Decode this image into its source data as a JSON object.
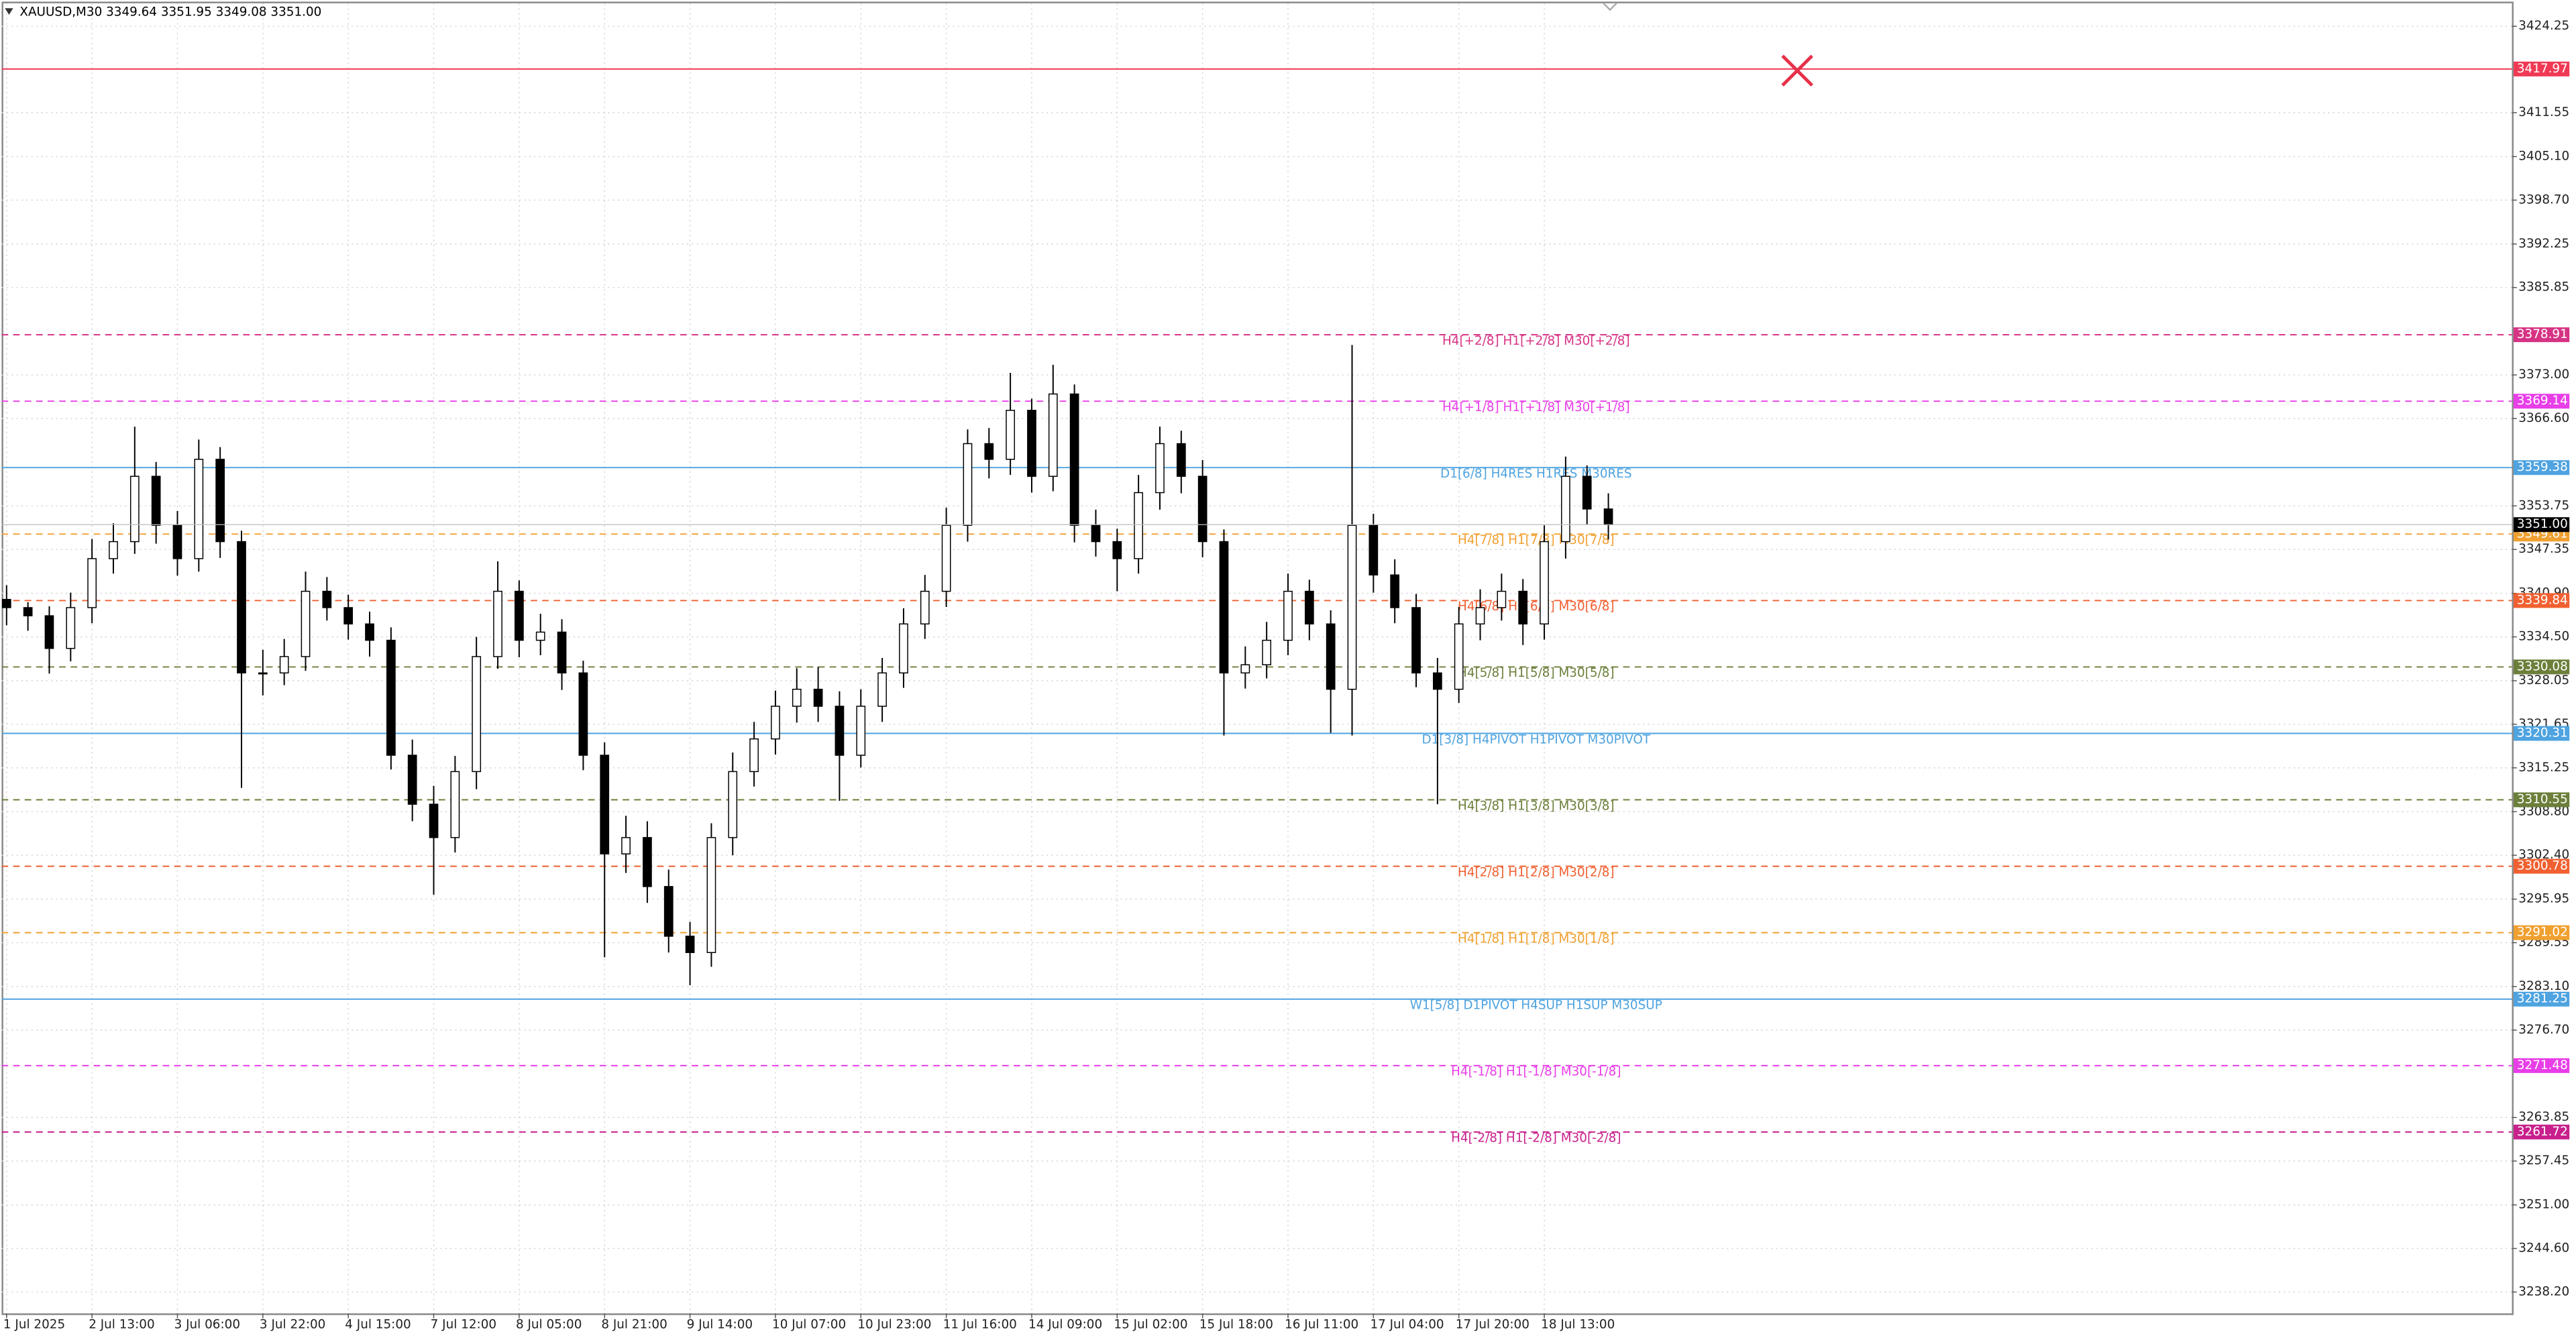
{
  "chart_data": {
    "type": "candlestick",
    "title": "XAUUSD,M30  3349.64 3351.95 3349.08 3351.00",
    "categories": [
      "1 Jul 2025",
      null,
      null,
      null,
      "2 Jul 13:00",
      null,
      null,
      null,
      "3 Jul 06:00",
      null,
      null,
      null,
      "3 Jul 22:00",
      null,
      null,
      null,
      "4 Jul 15:00",
      null,
      null,
      null,
      "7 Jul 12:00",
      null,
      null,
      null,
      "8 Jul 05:00",
      null,
      null,
      null,
      "8 Jul 21:00",
      null,
      null,
      null,
      "9 Jul 14:00",
      null,
      null,
      null,
      "10 Jul 07:00",
      null,
      null,
      null,
      "10 Jul 23:00",
      null,
      null,
      null,
      "11 Jul 16:00",
      null,
      null,
      null,
      "14 Jul 09:00",
      null,
      null,
      null,
      "15 Jul 02:00",
      null,
      null,
      null,
      "15 Jul 18:00",
      null,
      null,
      null,
      "16 Jul 11:00",
      null,
      null,
      null,
      "17 Jul 04:00",
      null,
      null,
      null,
      "17 Jul 20:00",
      null,
      null,
      null,
      "18 Jul 13:00",
      null,
      null,
      null
    ],
    "open": [
      3340.0,
      3338.8,
      3337.6,
      3332.8,
      3338.8,
      3346.0,
      3348.5,
      3358.1,
      3350.9,
      3346.0,
      3360.6,
      3348.5,
      3329.2,
      3329.2,
      3331.6,
      3341.2,
      3338.8,
      3336.4,
      3334.0,
      3317.1,
      3309.9,
      3305.0,
      3314.7,
      3331.6,
      3341.2,
      3334.0,
      3335.2,
      3329.2,
      3317.1,
      3302.6,
      3305.0,
      3297.8,
      3290.5,
      3288.1,
      3305.0,
      3314.7,
      3319.5,
      3324.3,
      3326.8,
      3324.3,
      3317.1,
      3324.3,
      3329.2,
      3336.4,
      3341.2,
      3350.9,
      3362.9,
      3360.6,
      3367.8,
      3358.1,
      3370.2,
      3350.9,
      3348.5,
      3346.0,
      3355.7,
      3362.9,
      3358.1,
      3348.5,
      3329.2,
      3330.4,
      3334.0,
      3341.2,
      3336.4,
      3326.8,
      3350.9,
      3343.6,
      3338.8,
      3329.2,
      3326.8,
      3336.4,
      3338.8,
      3341.2,
      3336.4,
      3348.5,
      3358.1,
      3353.3
    ],
    "high": [
      3342.1,
      3339.6,
      3339.0,
      3341.0,
      3348.9,
      3351.2,
      3365.4,
      3360.2,
      3353.0,
      3363.5,
      3362.4,
      3350.1,
      3332.6,
      3334.2,
      3344.1,
      3343.3,
      3340.7,
      3338.2,
      3335.9,
      3319.4,
      3312.6,
      3317.0,
      3334.5,
      3345.6,
      3342.8,
      3337.9,
      3337.1,
      3331.0,
      3319.0,
      3308.2,
      3307.4,
      3300.3,
      3292.6,
      3307.1,
      3317.5,
      3322.0,
      3326.6,
      3329.9,
      3330.1,
      3326.5,
      3326.8,
      3331.4,
      3338.7,
      3343.6,
      3353.5,
      3365.0,
      3365.2,
      3373.3,
      3369.5,
      3374.5,
      3371.6,
      3353.2,
      3350.4,
      3358.3,
      3365.4,
      3364.8,
      3360.5,
      3350.3,
      3333.1,
      3336.7,
      3343.8,
      3342.9,
      3338.4,
      3377.4,
      3352.6,
      3345.9,
      3340.8,
      3331.4,
      3338.9,
      3341.5,
      3343.8,
      3343.0,
      3350.9,
      3361.0,
      3359.7,
      3355.6
    ],
    "low": [
      3336.2,
      3335.4,
      3329.1,
      3330.9,
      3336.5,
      3343.8,
      3346.7,
      3348.2,
      3343.5,
      3344.1,
      3346.1,
      3312.3,
      3325.9,
      3327.4,
      3329.5,
      3336.9,
      3334.1,
      3331.6,
      3315.0,
      3307.4,
      3296.6,
      3302.8,
      3312.1,
      3329.8,
      3331.5,
      3331.8,
      3326.7,
      3314.9,
      3287.4,
      3299.8,
      3295.4,
      3288.1,
      3283.3,
      3286.0,
      3302.4,
      3312.5,
      3317.2,
      3321.9,
      3322.0,
      3310.4,
      3315.3,
      3322.0,
      3327.0,
      3334.2,
      3338.9,
      3348.5,
      3357.8,
      3358.3,
      3355.7,
      3355.9,
      3348.4,
      3346.3,
      3341.2,
      3343.8,
      3353.2,
      3355.6,
      3346.2,
      3320.0,
      3326.9,
      3328.4,
      3331.8,
      3334.0,
      3320.4,
      3320.0,
      3341.0,
      3336.5,
      3327.1,
      3309.9,
      3324.8,
      3334.0,
      3336.9,
      3333.3,
      3334.1,
      3346.0,
      3351.0,
      3348.8
    ],
    "close": [
      3338.8,
      3337.6,
      3332.8,
      3338.8,
      3346.0,
      3348.5,
      3358.1,
      3350.9,
      3346.0,
      3360.6,
      3348.5,
      3329.2,
      3329.2,
      3331.6,
      3341.2,
      3338.8,
      3336.4,
      3334.0,
      3317.1,
      3309.9,
      3305.0,
      3314.7,
      3331.6,
      3341.2,
      3334.0,
      3335.2,
      3329.2,
      3317.1,
      3302.6,
      3305.0,
      3297.8,
      3290.5,
      3288.1,
      3305.0,
      3314.7,
      3319.5,
      3324.3,
      3326.8,
      3324.3,
      3317.1,
      3324.3,
      3329.2,
      3336.4,
      3341.2,
      3350.9,
      3362.9,
      3360.6,
      3367.8,
      3358.1,
      3370.2,
      3350.9,
      3348.5,
      3346.0,
      3355.7,
      3362.9,
      3358.1,
      3348.5,
      3329.2,
      3330.4,
      3334.0,
      3341.2,
      3336.4,
      3326.8,
      3350.9,
      3343.6,
      3338.8,
      3329.2,
      3326.8,
      3336.4,
      3338.8,
      3341.2,
      3336.4,
      3348.5,
      3358.1,
      3353.3,
      3351.0
    ],
    "ylim": [
      3235.06,
      3427.63
    ],
    "yticks": [
      3424.25,
      3411.55,
      {
        "value": 3405.1,
        "label": "3405.10"
      },
      {
        "value": 3398.7,
        "label": "3398.70"
      },
      3392.25,
      3385.85,
      {
        "value": 3373,
        "label": "3373.00"
      },
      {
        "value": 3366.6,
        "label": "3366.60"
      },
      3353.75,
      3347.35,
      {
        "value": 3340.9,
        "label": "3340.90"
      },
      {
        "value": 3334.5,
        "label": "3334.50"
      },
      3328.05,
      3321.65,
      3315.25,
      {
        "value": 3308.8,
        "label": "3308.80"
      },
      {
        "value": 3302.4,
        "label": "3302.40"
      },
      3295.95,
      3289.55,
      {
        "value": 3283.1,
        "label": "3283.10"
      },
      {
        "value": 3276.7,
        "label": "3276.70"
      },
      3263.85,
      3257.45,
      {
        "value": 3251,
        "label": "3251.00"
      },
      {
        "value": 3244.6,
        "label": "3244.60"
      },
      {
        "value": 3238.2,
        "label": "3238.20"
      }
    ],
    "grid": true,
    "up_color": "#ffffff",
    "down_color": "#000000",
    "levels": [
      {
        "value": 3417.97,
        "color": "#f03a55",
        "style": "solid"
      },
      {
        "name": "H4[+2/8] H1[+2/8] M30[+2/8]",
        "value": 3378.91,
        "color": "#d63384",
        "style": "dashed"
      },
      {
        "name": "H4[+1/8] H1[+1/8] M30[+1/8]",
        "value": 3369.14,
        "color": "#e83ee8",
        "style": "dashed"
      },
      {
        "name": "D1[6/8] H4RES H1RES M30RES",
        "value": 3359.38,
        "color": "#4ea3e0",
        "style": "solid"
      },
      {
        "name": "H4[7/8] H1[7/8] M30[7/8]",
        "value": 3349.61,
        "color": "#f0a030",
        "style": "dashed"
      },
      {
        "name": "H4[6/8] H1[6/8] M30[6/8]",
        "value": 3339.84,
        "color": "#f06030",
        "style": "dashed"
      },
      {
        "name": "H4[5/8] H1[5/8] M30[5/8]",
        "value": 3330.08,
        "color": "#6b7f3a",
        "style": "dashed"
      },
      {
        "name": "D1[3/8] H4PIVOT H1PIVOT M30PIVOT",
        "value": 3320.31,
        "color": "#4ea3e0",
        "style": "solid"
      },
      {
        "name": "H4[3/8] H1[3/8] M30[3/8]",
        "value": 3310.55,
        "color": "#6b7f3a",
        "style": "dashed"
      },
      {
        "name": "H4[2/8] H1[2/8] M30[2/8]",
        "value": 3300.78,
        "color": "#f06030",
        "style": "dashed"
      },
      {
        "name": "H4[1/8] H1[1/8] M30[1/8]",
        "value": 3291.02,
        "color": "#f0a030",
        "style": "dashed"
      },
      {
        "name": "W1[5/8] D1PIVOT H4SUP H1SUP M30SUP",
        "value": 3281.25,
        "color": "#4ea3e0",
        "style": "solid"
      },
      {
        "name": "H4[-1/8] H1[-1/8] M30[-1/8]",
        "value": 3271.48,
        "color": "#e83ee8",
        "style": "dashed"
      },
      {
        "name": "H4[-2/8] H1[-2/8] M30[-2/8]",
        "value": 3261.72,
        "color": "#c8208c",
        "style": "dashed"
      }
    ],
    "current_price": {
      "value": 3351,
      "label": "3351.00"
    }
  }
}
